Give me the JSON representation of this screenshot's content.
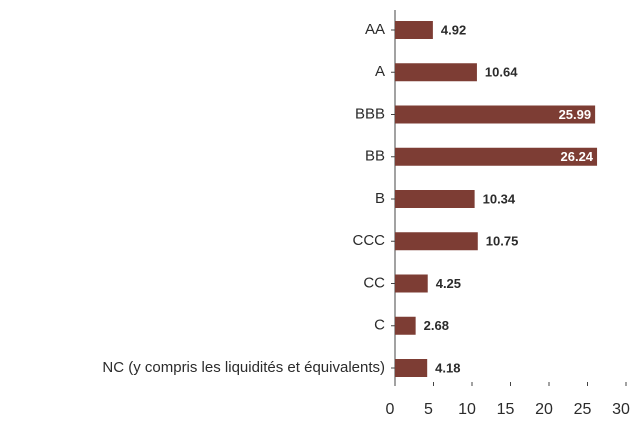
{
  "chart_data": {
    "type": "bar",
    "orientation": "horizontal",
    "categories": [
      "AA",
      "A",
      "BBB",
      "BB",
      "B",
      "CCC",
      "CC",
      "C",
      "NC (y compris les liquidités et équivalents)"
    ],
    "values": [
      4.92,
      10.64,
      25.99,
      26.24,
      10.34,
      10.75,
      4.25,
      2.68,
      4.18
    ],
    "color": "#7d3d34",
    "xlim": [
      0,
      30
    ],
    "xticks": [
      0,
      5,
      10,
      15,
      20,
      25,
      30
    ],
    "grid": false
  }
}
